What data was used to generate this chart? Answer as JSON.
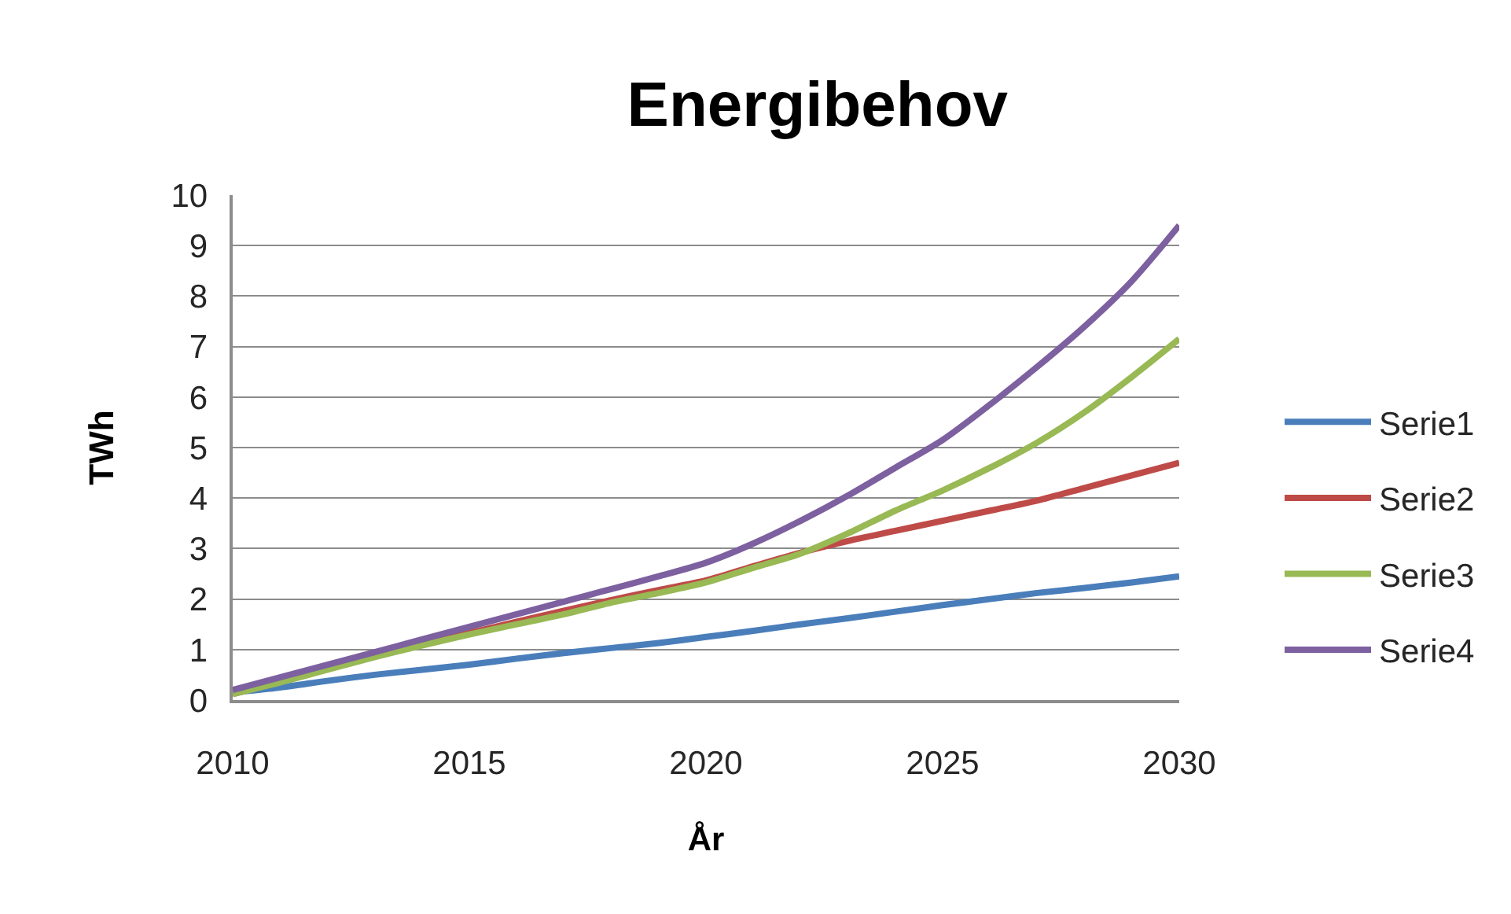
{
  "chart_data": {
    "type": "line",
    "title": "Energibehov",
    "xlabel": "År",
    "ylabel": "TWh",
    "x": [
      2010,
      2011,
      2012,
      2013,
      2014,
      2015,
      2016,
      2017,
      2018,
      2019,
      2020,
      2021,
      2022,
      2023,
      2024,
      2025,
      2026,
      2027,
      2028,
      2029,
      2030
    ],
    "series": [
      {
        "name": "Serie1",
        "color": "#4a7ebb",
        "values": [
          0.15,
          0.25,
          0.38,
          0.5,
          0.6,
          0.7,
          0.82,
          0.93,
          1.03,
          1.13,
          1.25,
          1.37,
          1.5,
          1.62,
          1.75,
          1.88,
          2.0,
          2.12,
          2.22,
          2.33,
          2.45
        ]
      },
      {
        "name": "Serie2",
        "color": "#be4b48",
        "values": [
          0.12,
          0.36,
          0.62,
          0.87,
          1.1,
          1.33,
          1.55,
          1.77,
          1.98,
          2.18,
          2.37,
          2.65,
          2.92,
          3.15,
          3.35,
          3.55,
          3.75,
          3.95,
          4.2,
          4.45,
          4.7
        ]
      },
      {
        "name": "Serie3",
        "color": "#98b954",
        "values": [
          0.12,
          0.35,
          0.6,
          0.85,
          1.08,
          1.3,
          1.5,
          1.7,
          1.93,
          2.12,
          2.33,
          2.62,
          2.9,
          3.3,
          3.75,
          4.15,
          4.6,
          5.1,
          5.7,
          6.4,
          7.15
        ]
      },
      {
        "name": "Serie4",
        "color": "#7d60a0",
        "values": [
          0.2,
          0.45,
          0.7,
          0.95,
          1.2,
          1.45,
          1.7,
          1.95,
          2.2,
          2.45,
          2.72,
          3.1,
          3.55,
          4.05,
          4.6,
          5.15,
          5.85,
          6.6,
          7.4,
          8.3,
          9.4
        ]
      }
    ],
    "xlim": [
      2010,
      2030
    ],
    "xticks": [
      2010,
      2015,
      2020,
      2025,
      2030
    ],
    "ylim": [
      0,
      10
    ],
    "yticks": [
      0,
      1,
      2,
      3,
      4,
      5,
      6,
      7,
      8,
      9,
      10
    ],
    "grid": "y",
    "legend": "right",
    "marker": "none",
    "line_style": "solid"
  }
}
